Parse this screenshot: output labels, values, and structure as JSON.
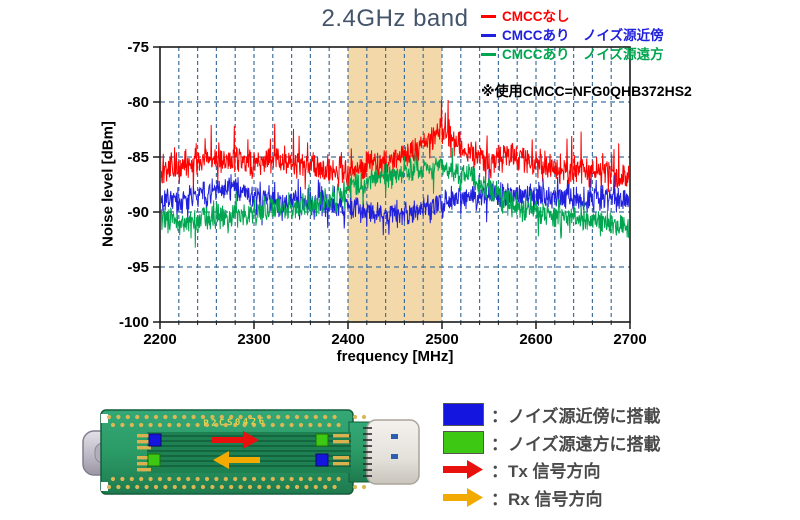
{
  "chart_data": {
    "type": "line",
    "title": "2.4GHz band",
    "title_color": "#44546A",
    "xlabel": "frequency [MHz]",
    "ylabel": "Noise level [dBm]",
    "xlim": [
      2200,
      2700
    ],
    "ylim": [
      -100,
      -75
    ],
    "x_ticks": [
      2200,
      2300,
      2400,
      2500,
      2600,
      2700
    ],
    "y_ticks": [
      -75,
      -80,
      -85,
      -90,
      -95,
      -100
    ],
    "grid": {
      "v_step_mhz": 20,
      "h_step_db": 5,
      "style": "dashed",
      "color": "#41719C"
    },
    "highlight_band": {
      "x0": 2400,
      "x1": 2500,
      "color": "#F3D9A9"
    },
    "note": "※使用CMCC=NFG0QHB372HS2",
    "legend_position": "top-right",
    "envelope_x": [
      2200,
      2225,
      2250,
      2275,
      2300,
      2325,
      2350,
      2375,
      2400,
      2425,
      2450,
      2475,
      2500,
      2525,
      2550,
      2575,
      2600,
      2625,
      2650,
      2675,
      2700
    ],
    "series": [
      {
        "name": "CMCCなし",
        "color": "#FF0000",
        "seed": 11,
        "jitter": 1.0,
        "spike_p": 0.1,
        "spike_amp": 2.6,
        "dip_p": 0.07,
        "dip_amp": 1.6,
        "envelope_y": [
          -86.8,
          -86.0,
          -85.0,
          -85.2,
          -85.6,
          -85.3,
          -85.8,
          -86.3,
          -86.3,
          -85.6,
          -85.2,
          -84.3,
          -82.6,
          -84.2,
          -85.6,
          -84.8,
          -85.4,
          -86.3,
          -86.4,
          -86.5,
          -86.9
        ]
      },
      {
        "name": "CMCCあり　ノイズ源近傍",
        "color": "#2020DD",
        "seed": 22,
        "jitter": 0.9,
        "spike_p": 0.08,
        "spike_amp": 2.0,
        "dip_p": 0.08,
        "dip_amp": 1.8,
        "envelope_y": [
          -88.6,
          -89.0,
          -88.3,
          -87.6,
          -88.6,
          -89.0,
          -89.0,
          -89.3,
          -89.5,
          -90.0,
          -90.3,
          -90.0,
          -89.0,
          -88.6,
          -88.5,
          -88.5,
          -88.4,
          -88.6,
          -88.9,
          -88.6,
          -88.7
        ]
      },
      {
        "name": "CMCCあり　ノイズ源遠方",
        "color": "#00A64F",
        "seed": 33,
        "jitter": 0.9,
        "spike_p": 0.08,
        "spike_amp": 1.6,
        "dip_p": 0.06,
        "dip_amp": 1.5,
        "envelope_y": [
          -90.6,
          -91.0,
          -90.6,
          -90.4,
          -90.0,
          -89.6,
          -89.6,
          -89.0,
          -87.8,
          -87.2,
          -86.6,
          -86.2,
          -85.8,
          -86.6,
          -88.0,
          -89.4,
          -90.0,
          -90.4,
          -90.8,
          -91.0,
          -91.4
        ]
      }
    ]
  },
  "pcb": {
    "board_label": "P2CS0426",
    "board_color": "#2B9B66",
    "marker_blue": "#1515E0",
    "marker_green": "#3DC814",
    "tx_arrow_color": "#E8110E",
    "rx_arrow_color": "#F2A900"
  },
  "bottom_legend": {
    "items": [
      {
        "icon": "blue-square",
        "color": "#1515E0",
        "label": "：ノイズ源近傍に搭載"
      },
      {
        "icon": "green-square",
        "color": "#3DC814",
        "label": "：ノイズ源遠方に搭載"
      },
      {
        "icon": "red-arrow-right",
        "color": "#E8110E",
        "label": "：Tx 信号方向"
      },
      {
        "icon": "orange-arrow-right",
        "color": "#F2A900",
        "label": "：Rx 信号方向"
      }
    ]
  }
}
